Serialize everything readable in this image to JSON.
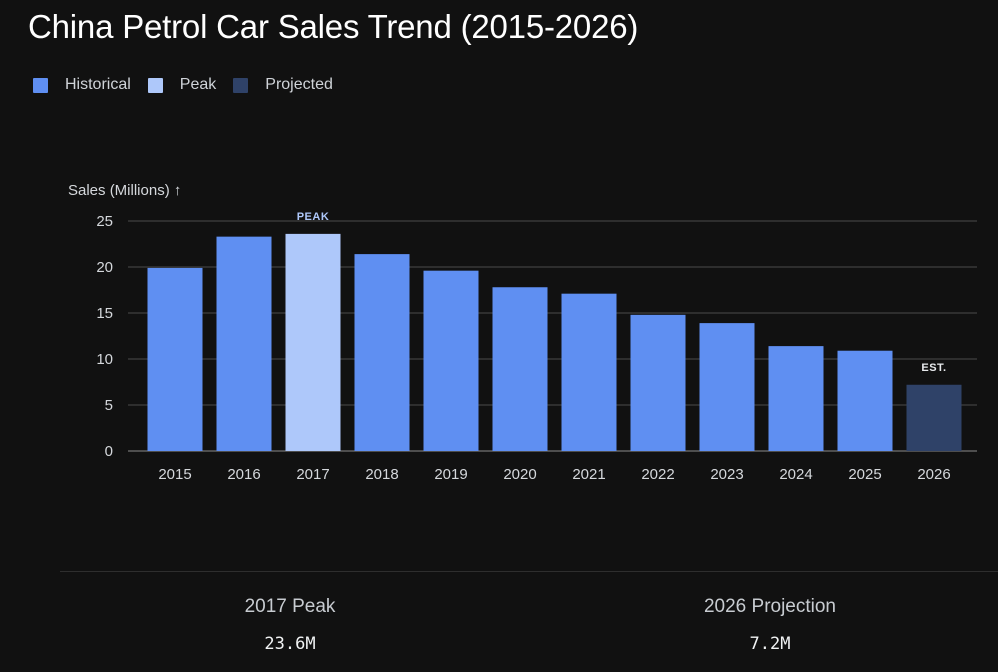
{
  "title": "China Petrol Car Sales Trend (2015-2026)",
  "legend": [
    {
      "label": "Historical",
      "color": "#5f8ff2"
    },
    {
      "label": "Peak",
      "color": "#aec8fa"
    },
    {
      "label": "Projected",
      "color": "#2f4268"
    }
  ],
  "chart_data": {
    "type": "bar",
    "title": "China Petrol Car Sales Trend (2015-2026)",
    "ylabel": "Sales (Millions) ↑",
    "xlabel": "",
    "ylim": [
      0,
      25
    ],
    "yticks": [
      0,
      5,
      10,
      15,
      20,
      25
    ],
    "grid": true,
    "legend_position": "top-left",
    "categories": [
      "2015",
      "2016",
      "2017",
      "2018",
      "2019",
      "2020",
      "2021",
      "2022",
      "2023",
      "2024",
      "2025",
      "2026"
    ],
    "values": [
      19.9,
      23.3,
      23.6,
      21.4,
      19.6,
      17.8,
      17.1,
      14.8,
      13.9,
      11.4,
      10.9,
      7.2
    ],
    "bar_kinds": [
      "Historical",
      "Historical",
      "Peak",
      "Historical",
      "Historical",
      "Historical",
      "Historical",
      "Historical",
      "Historical",
      "Historical",
      "Historical",
      "Projected"
    ],
    "annotations": [
      {
        "category": "2017",
        "text": "PEAK",
        "color": "#aec8fa"
      },
      {
        "category": "2026",
        "text": "EST.",
        "color": "#e8eaed"
      }
    ]
  },
  "stats": [
    {
      "label": "2017 Peak",
      "value": "23.6M"
    },
    {
      "label": "2026 Projection",
      "value": "7.2M"
    }
  ]
}
